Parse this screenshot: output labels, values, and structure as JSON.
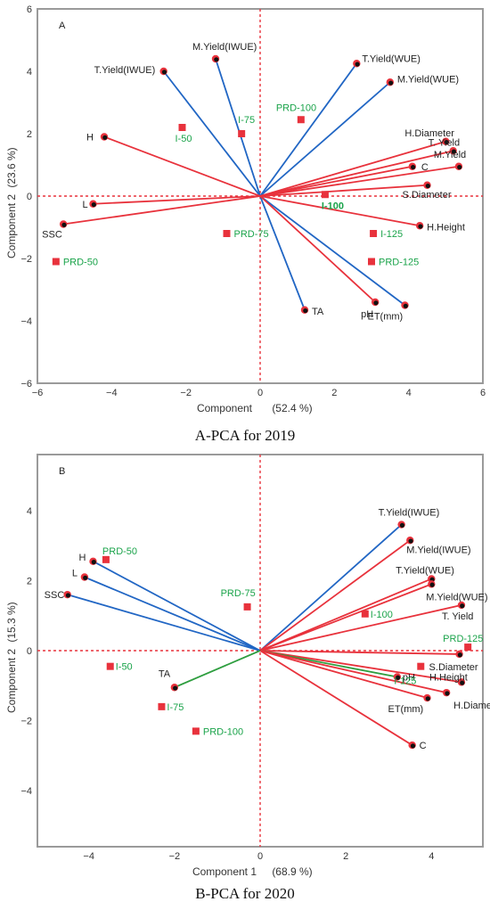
{
  "chart_data": [
    {
      "type": "scatter",
      "panel_label": "A",
      "caption": "A-PCA for 2019",
      "xlabel": "Component",
      "xlabel_pct": "(52.4 %)",
      "ylabel": "Component 2",
      "ylabel_pct": "(23.6 %)",
      "xlim": [
        -6,
        6
      ],
      "ylim": [
        -6,
        6
      ],
      "xticks": [
        -6,
        -4,
        -2,
        0,
        2,
        4,
        6
      ],
      "yticks": [
        -6,
        -4,
        -2,
        0,
        2,
        4,
        6
      ],
      "xtick_labels": [
        "−6",
        "−4",
        "−2",
        "0",
        "2",
        "4",
        "6"
      ],
      "ytick_labels": [
        "−6",
        "−4",
        "−2",
        "0",
        "2",
        "4",
        "6"
      ],
      "vectors": [
        {
          "label": "M.Yield(IWUE)",
          "x": -1.2,
          "y": 4.4,
          "color": "#2166c4"
        },
        {
          "label": "T.Yield(IWUE)",
          "x": -2.6,
          "y": 4.0,
          "color": "#2166c4"
        },
        {
          "label": "T.Yield(WUE)",
          "x": 2.6,
          "y": 4.25,
          "color": "#2166c4"
        },
        {
          "label": "M.Yield(WUE)",
          "x": 3.5,
          "y": 3.65,
          "color": "#2166c4"
        },
        {
          "label": "TA",
          "x": 1.2,
          "y": -3.65,
          "color": "#2166c4"
        },
        {
          "label": "ET(mm)",
          "x": 3.9,
          "y": -3.5,
          "color": "#2166c4"
        },
        {
          "label": "H",
          "x": -4.2,
          "y": 1.9,
          "color": "#e8323c"
        },
        {
          "label": "L",
          "x": -4.5,
          "y": -0.25,
          "color": "#e8323c"
        },
        {
          "label": "SSC",
          "x": -5.3,
          "y": -0.9,
          "color": "#e8323c"
        },
        {
          "label": "H.Diameter",
          "x": 5.0,
          "y": 1.75,
          "color": "#e8323c"
        },
        {
          "label": "T. Yield",
          "x": 5.2,
          "y": 1.45,
          "color": "#e8323c"
        },
        {
          "label": "C",
          "x": 4.1,
          "y": 0.95,
          "color": "#e8323c"
        },
        {
          "label": "M.Yield",
          "x": 5.35,
          "y": 0.95,
          "color": "#e8323c"
        },
        {
          "label": "S.Diameter",
          "x": 4.5,
          "y": 0.35,
          "color": "#e8323c"
        },
        {
          "label": "H.Height",
          "x": 4.3,
          "y": -0.95,
          "color": "#e8323c"
        },
        {
          "label": "pH",
          "x": 3.1,
          "y": -3.4,
          "color": "#e8323c"
        }
      ],
      "samples": [
        {
          "label": "PRD-100",
          "x": 1.1,
          "y": 2.45
        },
        {
          "label": "I-75",
          "x": -0.5,
          "y": 2.0
        },
        {
          "label": "I-50",
          "x": -2.1,
          "y": 2.2
        },
        {
          "label": "I-100",
          "x": 1.75,
          "y": 0.05,
          "bold": true
        },
        {
          "label": "I-125",
          "x": 3.05,
          "y": -1.2
        },
        {
          "label": "PRD-75",
          "x": -0.9,
          "y": -1.2
        },
        {
          "label": "PRD-125",
          "x": 3.0,
          "y": -2.1
        },
        {
          "label": "PRD-50",
          "x": -5.5,
          "y": -2.1
        }
      ]
    },
    {
      "type": "scatter",
      "panel_label": "B",
      "caption": "B-PCA for 2020",
      "xlabel": "Component 1",
      "xlabel_pct": "(68.9 %)",
      "ylabel": "Component 2",
      "ylabel_pct": "(15.3 %)",
      "xlim": [
        -5.2,
        5.2
      ],
      "ylim": [
        -5.6,
        5.6
      ],
      "xticks": [
        -4,
        -2,
        0,
        2,
        4
      ],
      "yticks": [
        -4,
        -2,
        0,
        2,
        4
      ],
      "xtick_labels": [
        "−4",
        "−2",
        "0",
        "2",
        "4"
      ],
      "ytick_labels": [
        "−4",
        "−2",
        "0",
        "2",
        "4"
      ],
      "vectors": [
        {
          "label": "H",
          "x": -3.9,
          "y": 2.55,
          "color": "#2166c4"
        },
        {
          "label": "L",
          "x": -4.1,
          "y": 2.1,
          "color": "#2166c4"
        },
        {
          "label": "SSC",
          "x": -4.5,
          "y": 1.6,
          "color": "#2166c4"
        },
        {
          "label": "T.Yield(IWUE)",
          "x": 3.3,
          "y": 3.6,
          "color": "#2166c4"
        },
        {
          "label": "M.Yield(IWUE)",
          "x": 3.5,
          "y": 3.15,
          "color": "#e8323c"
        },
        {
          "label": "T.Yield(WUE)",
          "x": 4.0,
          "y": 2.05,
          "color": "#e8323c"
        },
        {
          "label": "M.Yield(WUE)",
          "x": 4.0,
          "y": 1.9,
          "color": "#e8323c"
        },
        {
          "label": "T. Yield",
          "x": 4.7,
          "y": 1.3,
          "color": "#e8323c"
        },
        {
          "label": "S.Diameter",
          "x": 4.65,
          "y": -0.1,
          "color": "#e8323c"
        },
        {
          "label": "H.Height",
          "x": 4.7,
          "y": -0.9,
          "color": "#e8323c"
        },
        {
          "label": "pH",
          "x": 3.2,
          "y": -0.75,
          "color": "#2e9e3f"
        },
        {
          "label": "H.Diameter",
          "x": 4.35,
          "y": -1.2,
          "color": "#e8323c"
        },
        {
          "label": "ET(mm)",
          "x": 3.9,
          "y": -1.35,
          "color": "#e8323c"
        },
        {
          "label": "C",
          "x": 3.55,
          "y": -2.7,
          "color": "#e8323c"
        },
        {
          "label": "TA",
          "x": -2.0,
          "y": -1.05,
          "color": "#2e9e3f"
        }
      ],
      "samples": [
        {
          "label": "PRD-50",
          "x": -3.6,
          "y": 2.6
        },
        {
          "label": "PRD-75",
          "x": -0.3,
          "y": 1.25
        },
        {
          "label": "I-100",
          "x": 2.45,
          "y": 1.05
        },
        {
          "label": "PRD-125",
          "x": 4.85,
          "y": 0.1
        },
        {
          "label": "I-125",
          "x": 3.75,
          "y": -0.45
        },
        {
          "label": "I-50",
          "x": -3.5,
          "y": -0.45
        },
        {
          "label": "I-75",
          "x": -2.3,
          "y": -1.6
        },
        {
          "label": "PRD-100",
          "x": -1.5,
          "y": -2.3
        }
      ]
    }
  ]
}
